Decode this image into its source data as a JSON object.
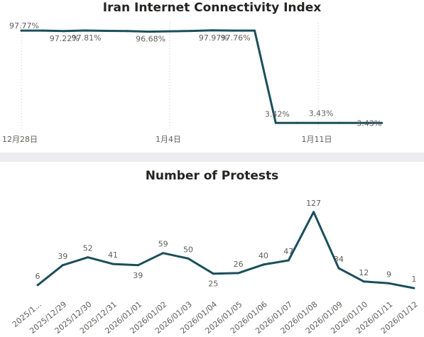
{
  "line_color": "#1b4f5a",
  "chart_data": [
    {
      "type": "line",
      "title": "Iran Internet Connectivity Index",
      "x_ticks": [
        "12月28日",
        "1月4日",
        "1月11日"
      ],
      "series": [
        {
          "x": [
            "2025-12-28",
            "2025-12-29",
            "2025-12-30",
            "2025-12-31",
            "2026-01-01",
            "2026-01-02",
            "2026-01-03",
            "2026-01-04",
            "2026-01-05",
            "2026-01-06",
            "2026-01-07",
            "2026-01-08",
            "2026-01-09",
            "2026-01-10",
            "2026-01-11",
            "2026-01-12",
            "2026-01-13",
            "2026-01-14"
          ],
          "values": [
            97.77,
            97.72,
            97.22,
            97.81,
            97.5,
            97.3,
            96.68,
            97.0,
            97.4,
            97.97,
            97.76,
            97.76,
            3.42,
            3.42,
            3.43,
            3.43,
            3.43,
            3.43
          ],
          "labels": [
            "97.77%",
            "97.22%",
            "97.81%",
            "96.68%",
            "97.97%",
            "97.76%",
            "3.42%",
            "3.43%",
            "3.43%"
          ]
        }
      ],
      "ylim": [
        0,
        100
      ],
      "grid": "vertical dotted"
    },
    {
      "type": "line",
      "title": "Number of Protests",
      "categories": [
        "2025/1...",
        "2025/12/29",
        "2025/12/30",
        "2025/12/31",
        "2026/01/01",
        "2026/01/02",
        "2026/01/03",
        "2026/01/04",
        "2026/01/05",
        "2026/01/06",
        "2026/01/07",
        "2026/01/08",
        "2026/01/09",
        "2026/01/10",
        "2026/01/11",
        "2026/01/12"
      ],
      "values": [
        6,
        39,
        52,
        41,
        39,
        59,
        50,
        25,
        26,
        40,
        47,
        127,
        34,
        12,
        9,
        1
      ],
      "ylim": [
        0,
        135
      ]
    }
  ]
}
